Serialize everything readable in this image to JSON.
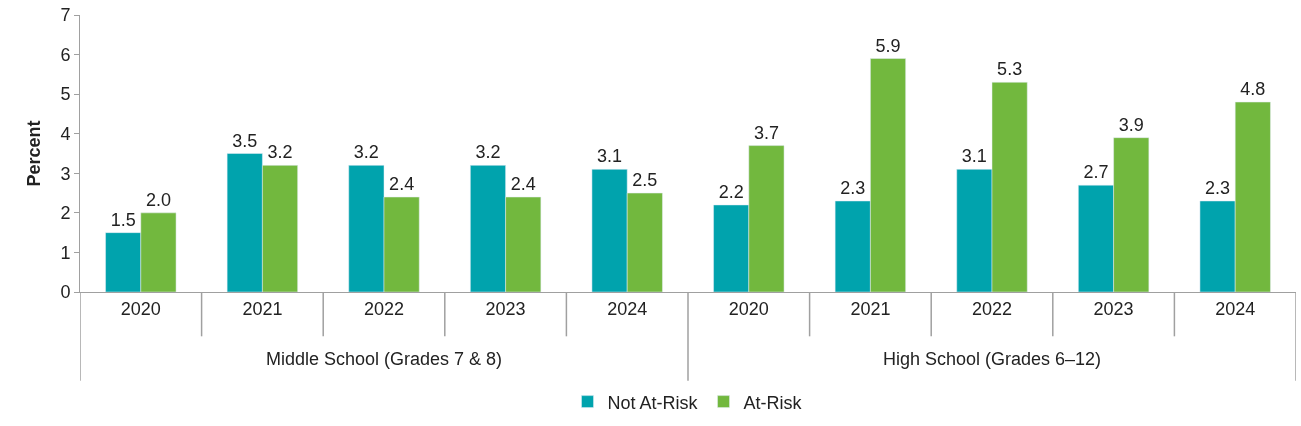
{
  "chart_data": {
    "type": "bar",
    "ylabel": "Percent",
    "categories": [
      "2020",
      "2021",
      "2022",
      "2023",
      "2024",
      "2020",
      "2021",
      "2022",
      "2023",
      "2024"
    ],
    "series": [
      {
        "name": "Not At-Risk",
        "color": "#00a3ad",
        "values": [
          1.5,
          3.5,
          3.2,
          3.2,
          3.1,
          2.2,
          2.3,
          3.1,
          2.7,
          2.3
        ],
        "value_labels": [
          "1.5",
          "3.5",
          "3.2",
          "3.2",
          "3.1",
          "2.2",
          "2.3",
          "3.1",
          "2.7",
          "2.3"
        ]
      },
      {
        "name": "At-Risk",
        "color": "#72b83e",
        "values": [
          2.0,
          3.2,
          2.4,
          2.4,
          2.5,
          3.7,
          5.9,
          5.3,
          3.9,
          4.8
        ],
        "value_labels": [
          "2.0",
          "3.2",
          "2.4",
          "2.4",
          "2.5",
          "3.7",
          "5.9",
          "5.3",
          "3.9",
          "4.8"
        ]
      }
    ],
    "annotations": [
      "Middle School (Grades 7 & 8)",
      "High School (Grades 6–12)"
    ],
    "ylim": [
      0,
      7
    ],
    "yticks": [
      0,
      1,
      2,
      3,
      4,
      5,
      6,
      7
    ],
    "legend": "bottom"
  }
}
